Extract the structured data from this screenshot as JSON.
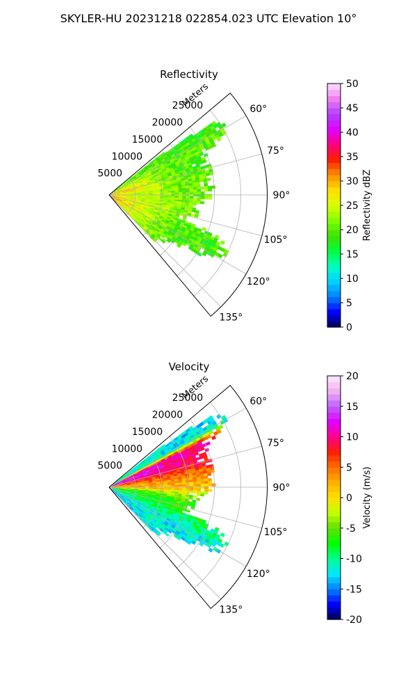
{
  "figure": {
    "title": "SKYLER-HU  20231218  022854.023 UTC Elevation 10°"
  },
  "colors": {
    "reflectivity_stops": [
      "#00004c",
      "#0000ff",
      "#0080ff",
      "#00d0ff",
      "#00ffc0",
      "#00ff40",
      "#40e000",
      "#80ff00",
      "#d8ff00",
      "#ffe000",
      "#ff9000",
      "#ff2000",
      "#ff0080",
      "#e000ff",
      "#b040ff",
      "#f080f0",
      "#ffe0ff"
    ],
    "velocity_stops": [
      "#00004c",
      "#0000ff",
      "#0080ff",
      "#00e8ff",
      "#00ff90",
      "#00ff00",
      "#60e000",
      "#c0ff00",
      "#ffe000",
      "#ffb000",
      "#ff7000",
      "#ff2000",
      "#ff0090",
      "#e000ff",
      "#c060ff",
      "#f0b0f0",
      "#ffe8ff"
    ]
  },
  "chart_data": [
    {
      "type": "polar-ppi",
      "title": "Reflectivity",
      "radial_label": "Meters",
      "radial_ticks": [
        5000,
        10000,
        15000,
        20000,
        25000
      ],
      "rmax": 30000,
      "theta_range_deg": [
        50,
        140
      ],
      "theta_ticks": [
        "60°",
        "75°",
        "90°",
        "105°",
        "120°",
        "135°"
      ],
      "grid": true,
      "colorbar": {
        "label": "Reflectivity dBZ",
        "range": [
          0,
          50
        ],
        "ticks": [
          0,
          5,
          10,
          15,
          20,
          25,
          30,
          35,
          40,
          45,
          50
        ],
        "cmap": "reflectivity_stops"
      },
      "field_profile": {
        "azimuth_deg": [
          52,
          56,
          60,
          64,
          68,
          72,
          76,
          80,
          84,
          88,
          92,
          96,
          100,
          104,
          108,
          112,
          116,
          120,
          124,
          128,
          132
        ],
        "max_range_m": [
          12000,
          24500,
          26000,
          22500,
          19500,
          20000,
          20000,
          20000,
          20000,
          20000,
          19000,
          17000,
          17500,
          17000,
          15500,
          23500,
          24500,
          24500,
          19500,
          14500,
          13000
        ],
        "near_dbz": [
          21,
          22,
          24,
          25,
          28,
          30,
          30,
          29,
          28,
          27,
          27,
          27,
          27,
          28,
          29,
          30,
          31,
          30,
          29,
          29,
          29
        ],
        "far_dbz": [
          18,
          18,
          20,
          20,
          20,
          19,
          20,
          21,
          21,
          21,
          21,
          22,
          21,
          22,
          20,
          20,
          19,
          19,
          19,
          19,
          19
        ]
      }
    },
    {
      "type": "polar-ppi",
      "title": "Velocity",
      "radial_label": "Meters",
      "radial_ticks": [
        5000,
        10000,
        15000,
        20000,
        25000
      ],
      "rmax": 30000,
      "theta_range_deg": [
        50,
        140
      ],
      "theta_ticks": [
        "60°",
        "75°",
        "90°",
        "105°",
        "120°",
        "135°"
      ],
      "grid": true,
      "colorbar": {
        "label": "Velocity (m/s)",
        "range": [
          -20,
          20
        ],
        "ticks": [
          -20,
          -15,
          -10,
          -5,
          0,
          5,
          10,
          15,
          20
        ],
        "cmap": "velocity_stops"
      },
      "field_profile": {
        "azimuth_deg": [
          52,
          56,
          60,
          64,
          68,
          72,
          76,
          80,
          84,
          88,
          92,
          96,
          100,
          104,
          108,
          112,
          116,
          120,
          124,
          128,
          132
        ],
        "max_range_m": [
          12000,
          24500,
          26000,
          22500,
          19500,
          20000,
          20000,
          20000,
          20000,
          20000,
          19000,
          17000,
          17500,
          17000,
          15500,
          23500,
          24500,
          24500,
          19500,
          14500,
          13000
        ],
        "near_ms": [
          -9,
          -10,
          -9,
          12,
          14,
          13,
          9,
          6,
          4,
          3,
          2,
          -6,
          -8,
          -9,
          -9,
          -10,
          -11,
          -12,
          -12,
          -12,
          -13
        ],
        "far_ms": [
          -12,
          -13,
          -12,
          10,
          10,
          9,
          8,
          5,
          3,
          2,
          1,
          -4,
          -6,
          -6,
          -7,
          -9,
          -10,
          -12,
          -12,
          -12,
          -12
        ]
      }
    }
  ]
}
